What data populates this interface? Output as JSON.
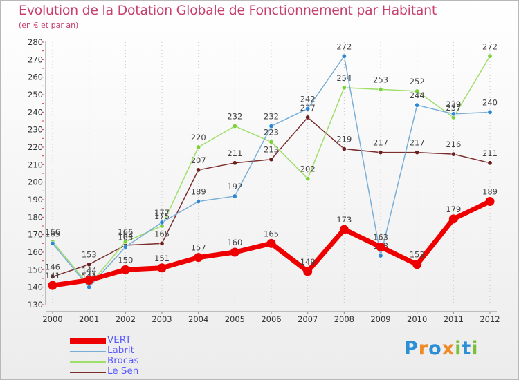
{
  "title": "Evolution de la Dotation Globale de Fonctionnement par Habitant",
  "subtitle": "(en € et par an)",
  "logo_text": "Proxiti",
  "chart_data": {
    "type": "line",
    "title": "Evolution de la Dotation Globale de Fonctionnement par Habitant",
    "ylabel": "(en € et par an)",
    "xlabel": "",
    "categories": [
      "2000",
      "2001",
      "2002",
      "2003",
      "2004",
      "2005",
      "2006",
      "2007",
      "2008",
      "2009",
      "2010",
      "2011",
      "2012"
    ],
    "ylim": [
      130,
      280
    ],
    "yticks": [
      130,
      140,
      150,
      160,
      170,
      180,
      190,
      200,
      210,
      220,
      230,
      240,
      250,
      260,
      270,
      280
    ],
    "grid": "vertical dotted",
    "legend_position": "bottom-left",
    "series": [
      {
        "name": "VERT",
        "color": "#ee0000",
        "values": [
          141,
          144,
          150,
          151,
          157,
          160,
          165,
          149,
          173,
          163,
          153,
          179,
          189
        ]
      },
      {
        "name": "Labrit",
        "color": "#7aaed6",
        "marker": "#2f86d2",
        "values": [
          165,
          140,
          163,
          177,
          189,
          192,
          232,
          242,
          272,
          158,
          244,
          239,
          240
        ]
      },
      {
        "name": "Brocas",
        "color": "#9ede6a",
        "marker": "#7cd13a",
        "values": [
          166,
          141,
          166,
          175,
          220,
          232,
          223,
          202,
          254,
          253,
          252,
          237,
          272
        ]
      },
      {
        "name": "Le Sen",
        "color": "#7a2e2e",
        "marker": "#6b1f1f",
        "values": [
          146,
          153,
          164,
          165,
          207,
          211,
          213,
          237,
          219,
          217,
          217,
          216,
          211
        ]
      }
    ]
  }
}
